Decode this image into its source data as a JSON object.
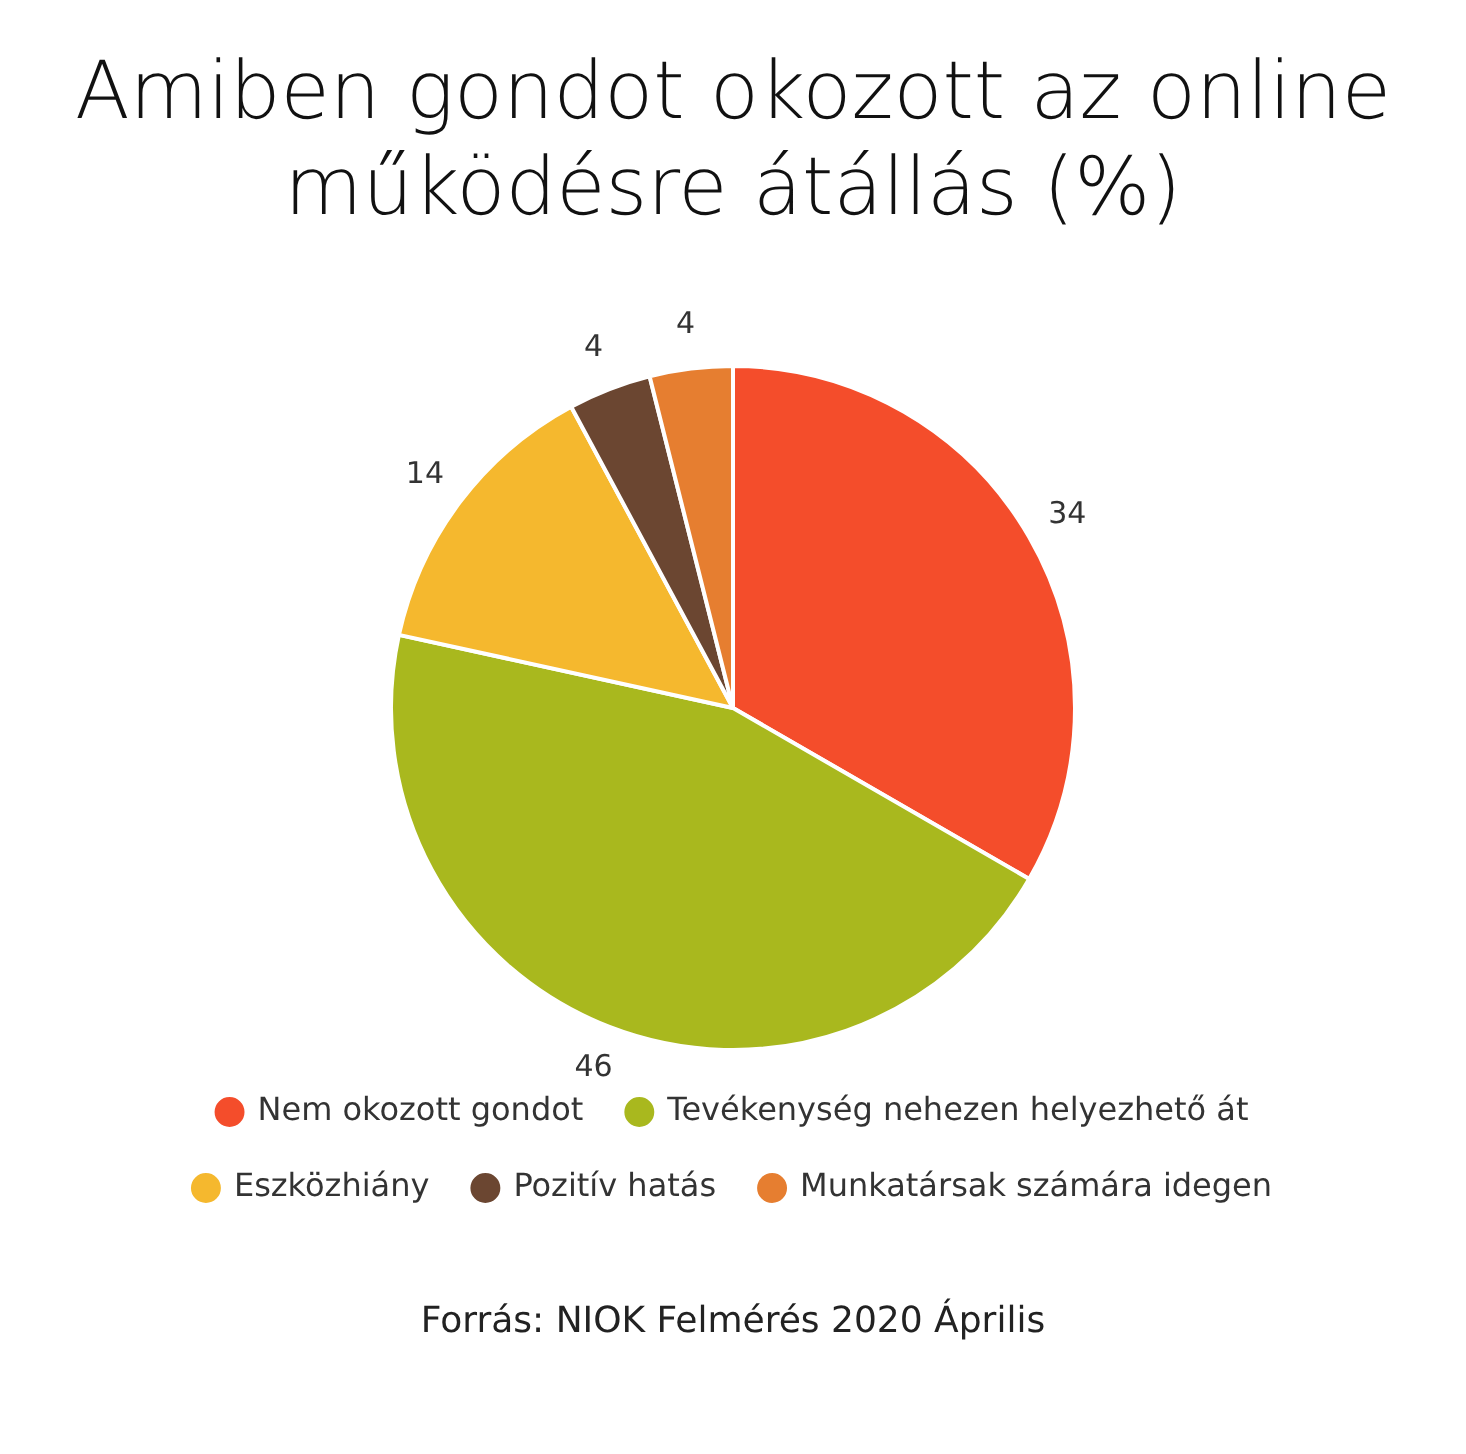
{
  "chart_data": {
    "type": "pie",
    "title": "Amiben gondot okozott az online működésre átállás (%)",
    "categories": [
      "Nem okozott gondot",
      "Tevékenység nehezen helyezhető át",
      "Eszközhiány",
      "Pozitív hatás",
      "Munkatársak számára idegen"
    ],
    "values": [
      34,
      46,
      14,
      4,
      4
    ],
    "colors": [
      "#f44d2b",
      "#a9b81e",
      "#f5b82e",
      "#6b4631",
      "#e67e30"
    ],
    "data_labels": true,
    "legend": "bottom",
    "annotations": [
      "Forrás: NIOK Felmérés 2020 Április"
    ]
  }
}
